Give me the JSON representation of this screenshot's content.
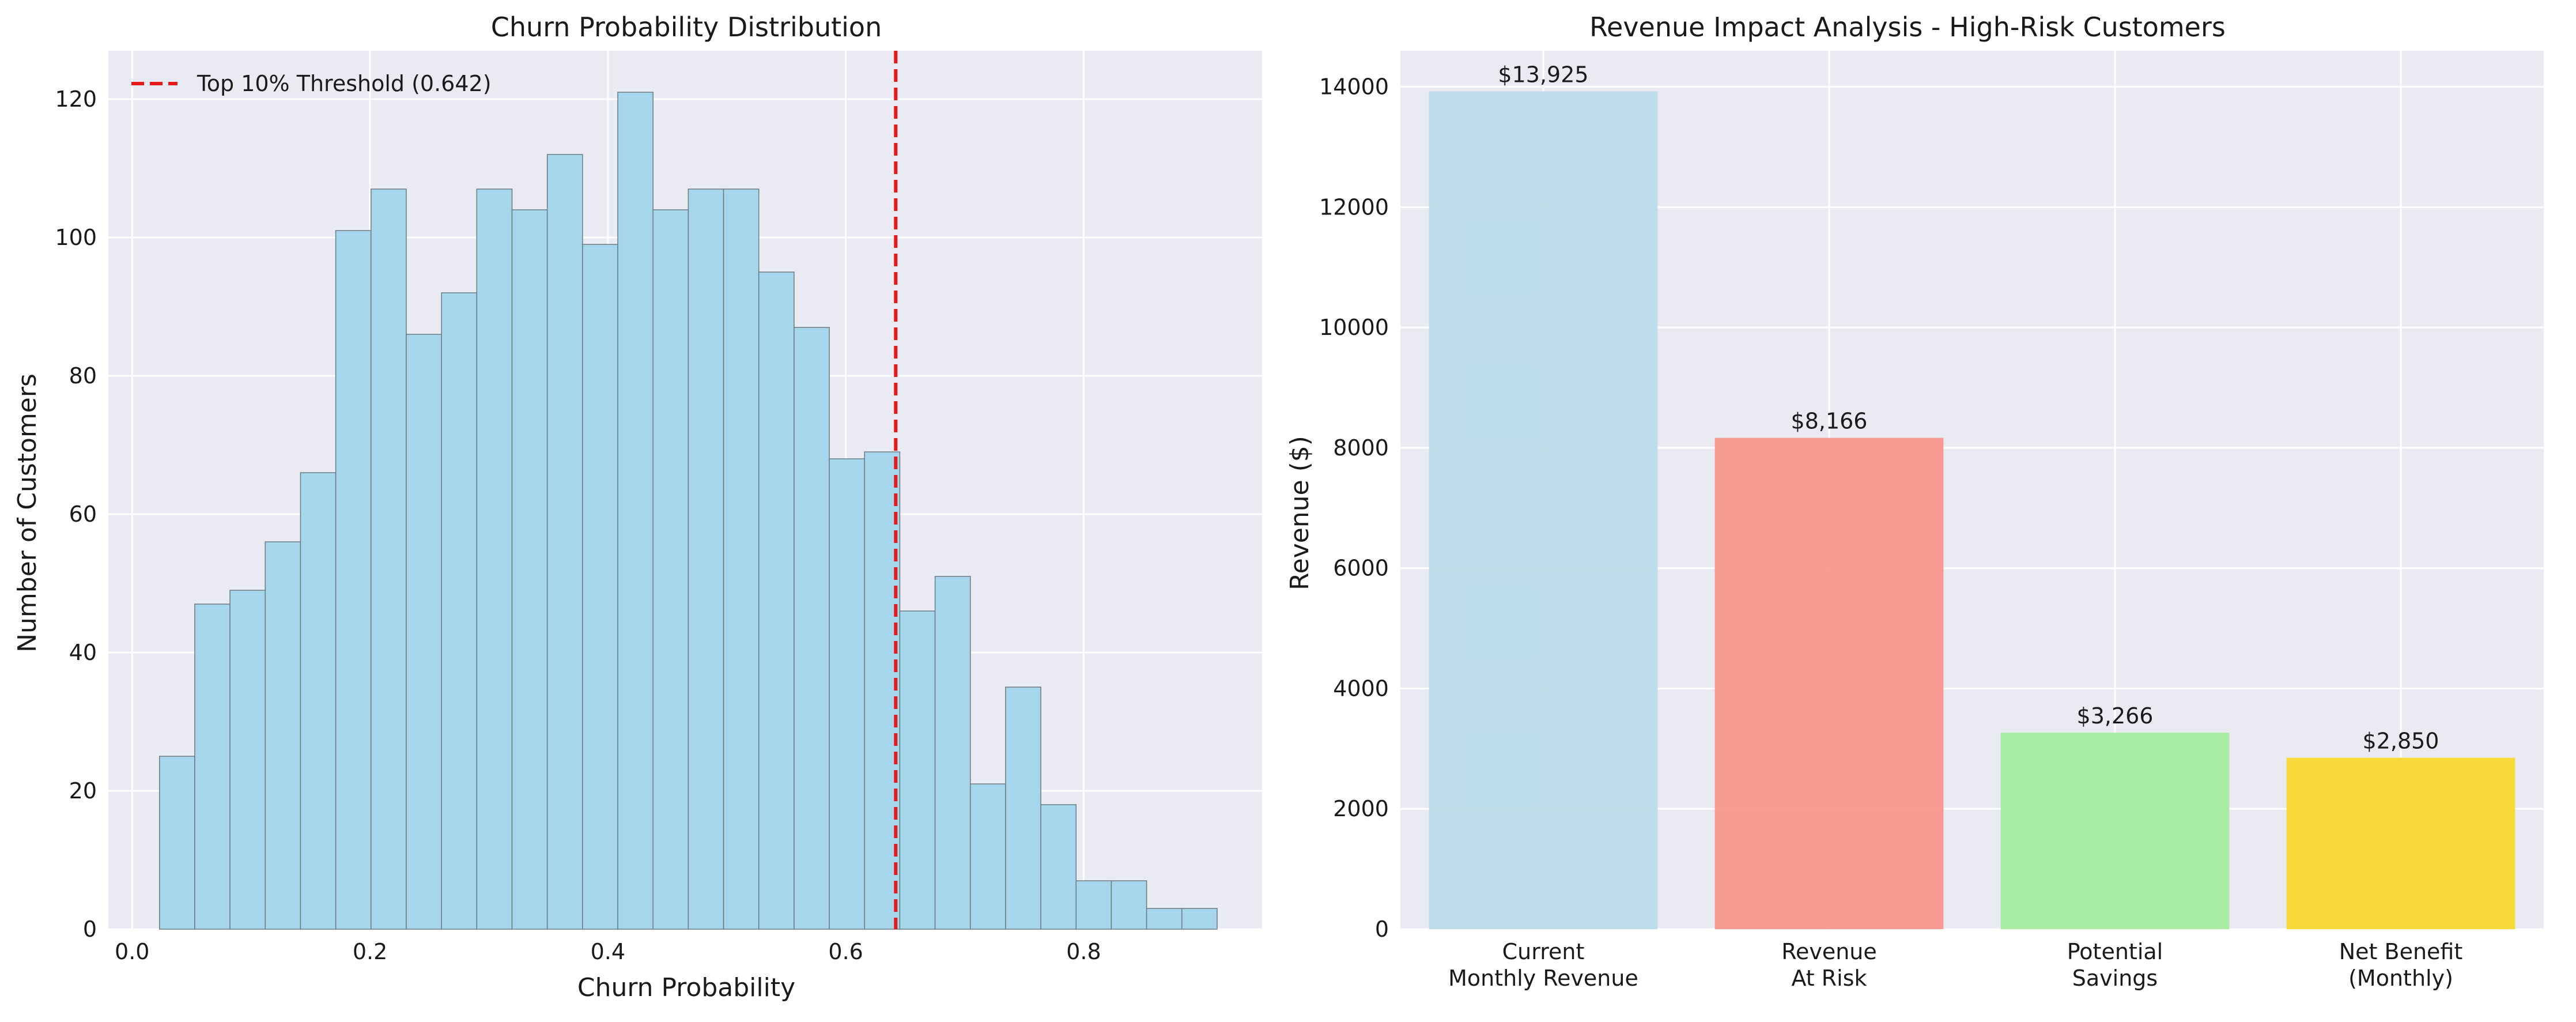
{
  "chart_data": [
    {
      "type": "bar",
      "title": "Churn Probability Distribution",
      "xlabel": "Churn Probability",
      "ylabel": "Number of Customers",
      "xlim": [
        -0.02,
        0.95
      ],
      "ylim": [
        0,
        127
      ],
      "xticks": [
        0.0,
        0.2,
        0.4,
        0.6,
        0.8
      ],
      "xtick_labels": [
        "0.0",
        "0.2",
        "0.4",
        "0.6",
        "0.8"
      ],
      "yticks": [
        0,
        20,
        40,
        60,
        80,
        100,
        120
      ],
      "ytick_labels": [
        "0",
        "20",
        "40",
        "60",
        "80",
        "100",
        "120"
      ],
      "grid": true,
      "bin_start": 0.023,
      "bin_width": 0.02964,
      "counts": [
        25,
        47,
        49,
        56,
        66,
        101,
        107,
        86,
        92,
        107,
        104,
        112,
        99,
        121,
        104,
        107,
        107,
        95,
        87,
        68,
        69,
        46,
        51,
        21,
        35,
        18,
        7,
        7,
        3,
        3
      ],
      "bar_color": "#a6d6ec",
      "threshold": {
        "value": 0.642,
        "label": "Top 10% Threshold (0.642)",
        "color": "#e31a1c"
      },
      "legend_position": "upper-left"
    },
    {
      "type": "bar",
      "title": "Revenue Impact Analysis - High-Risk Customers",
      "xlabel": "",
      "ylabel": "Revenue ($)",
      "ylim": [
        0,
        14600
      ],
      "yticks": [
        0,
        2000,
        4000,
        6000,
        8000,
        10000,
        12000,
        14000
      ],
      "ytick_labels": [
        "0",
        "2000",
        "4000",
        "6000",
        "8000",
        "10000",
        "12000",
        "14000"
      ],
      "grid": true,
      "categories": [
        [
          "Current",
          "Monthly Revenue"
        ],
        [
          "Revenue",
          "At Risk"
        ],
        [
          "Potential",
          "Savings"
        ],
        [
          "Net Benefit",
          "(Monthly)"
        ]
      ],
      "values": [
        13925,
        8166,
        3266,
        2850
      ],
      "value_labels": [
        "$13,925",
        "$8,166",
        "$3,266",
        "$2,850"
      ],
      "colors": [
        "#b9dce8",
        "#f6978b",
        "#a3eb9f",
        "#f8d92f"
      ]
    }
  ]
}
